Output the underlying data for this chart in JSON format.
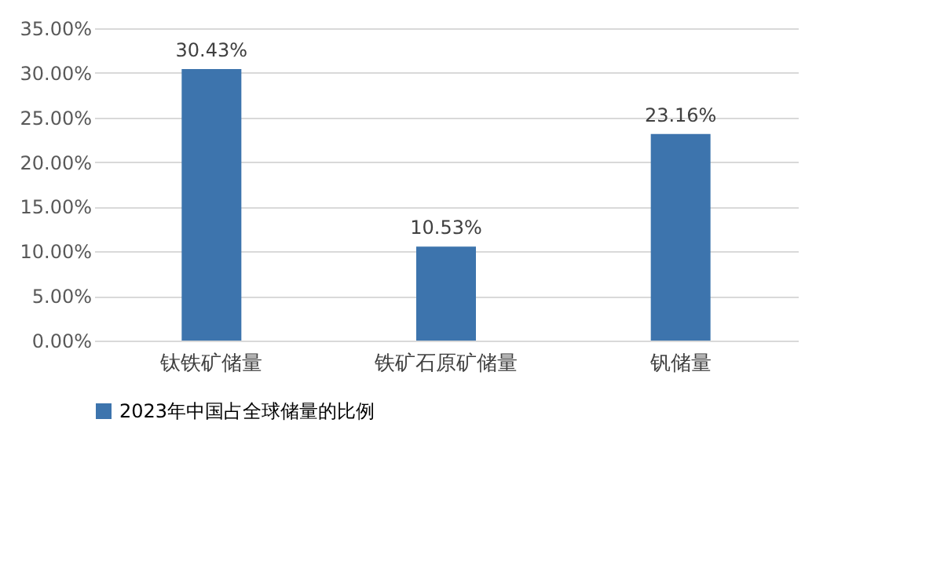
{
  "chart_data": {
    "type": "bar",
    "categories": [
      "钛铁矿储量",
      "铁矿石原矿储量",
      "钒储量"
    ],
    "series": [
      {
        "name": "2023年中国占全球储量的比例",
        "color": "#3d74ad",
        "values": [
          30.43,
          10.53,
          23.16
        ],
        "value_labels": [
          "30.43%",
          "10.53%",
          "23.16%"
        ]
      }
    ],
    "ylim": [
      0,
      35
    ],
    "yticks": [
      {
        "value": 0,
        "label": "0.00%"
      },
      {
        "value": 5,
        "label": "5.00%"
      },
      {
        "value": 10,
        "label": "10.00%"
      },
      {
        "value": 15,
        "label": "15.00%"
      },
      {
        "value": 20,
        "label": "20.00%"
      },
      {
        "value": 25,
        "label": "25.00%"
      },
      {
        "value": 30,
        "label": "30.00%"
      },
      {
        "value": 35,
        "label": "35.00%"
      }
    ],
    "grid": "y",
    "legend": "bottom"
  }
}
